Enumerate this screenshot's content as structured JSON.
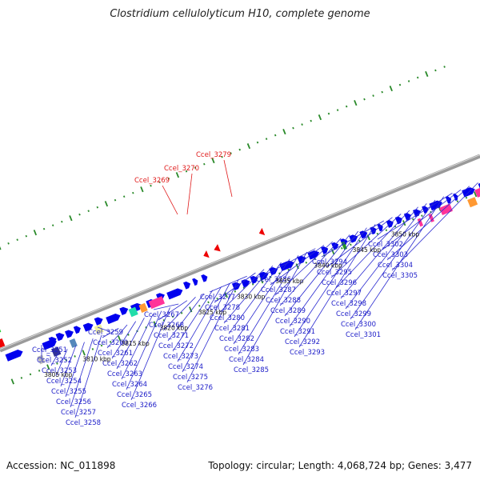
{
  "header": {
    "title": "Clostridium cellulolyticum H10, complete genome"
  },
  "footer": {
    "accession": "Accession: NC_011898",
    "topology": "Topology: circular; Length: 4,068,724 bp; Genes: 3,477"
  },
  "colors": {
    "forward_gene": "#0000ee",
    "reverse_gene": "#ee0000",
    "label_forward": "#1c1cc8",
    "label_reverse": "#e01a1a",
    "ticks": "#2a8a2a",
    "backbone": "#8a8a8a"
  },
  "kbp_marks": [
    {
      "pos": 3805,
      "label": "3805 kbp"
    },
    {
      "pos": 3810,
      "label": "3810 kbp"
    },
    {
      "pos": 3815,
      "label": "3815 kbp"
    },
    {
      "pos": 3820,
      "label": "3820 kbp"
    },
    {
      "pos": 3825,
      "label": "3825 kbp"
    },
    {
      "pos": 3830,
      "label": "3830 kbp"
    },
    {
      "pos": 3835,
      "label": "3835 kbp"
    },
    {
      "pos": 3840,
      "label": "3840 kbp"
    },
    {
      "pos": 3845,
      "label": "3845 kbp"
    },
    {
      "pos": 3850,
      "label": "3850 kbp"
    }
  ],
  "gene_labels_reverse": [
    "Ccel_3269",
    "Ccel_3270",
    "Ccel_3279"
  ],
  "gene_labels_forward": [
    "Ccel_3251",
    "Ccel_3252",
    "Ccel_3253",
    "Ccel_3254",
    "Ccel_3255",
    "Ccel_3256",
    "Ccel_3257",
    "Ccel_3258",
    "Ccel_3259",
    "Ccel_3260",
    "Ccel_3261",
    "Ccel_3262",
    "Ccel_3263",
    "Ccel_3264",
    "Ccel_3265",
    "Ccel_3266",
    "Ccel_3267",
    "Ccel_3268",
    "Ccel_3271",
    "Ccel_3272",
    "Ccel_3273",
    "Ccel_3274",
    "Ccel_3275",
    "Ccel_3276",
    "Ccel_3277",
    "Ccel_3278",
    "Ccel_3280",
    "Ccel_3281",
    "Ccel_3282",
    "Ccel_3283",
    "Ccel_3284",
    "Ccel_3285",
    "Ccel_3286",
    "Ccel_3287",
    "Ccel_3288",
    "Ccel_3289",
    "Ccel_3290",
    "Ccel_3291",
    "Ccel_3292",
    "Ccel_3293",
    "Ccel_3294",
    "Ccel_3295",
    "Ccel_3296",
    "Ccel_3297",
    "Ccel_3298",
    "Ccel_3299",
    "Ccel_3300",
    "Ccel_3301",
    "Ccel_3302",
    "Ccel_3303",
    "Ccel_3304",
    "Ccel_3305"
  ]
}
